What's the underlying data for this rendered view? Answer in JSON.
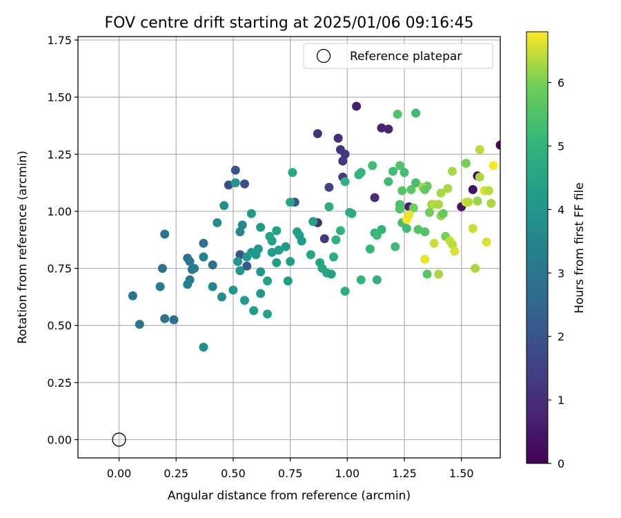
{
  "chart_data": {
    "type": "scatter",
    "title": "FOV centre drift starting at 2025/01/06 09:16:45",
    "xlabel": "Angular distance from reference (arcmin)",
    "ylabel": "Rotation from reference (arcmin)",
    "xlim": [
      -0.18,
      1.67
    ],
    "ylim": [
      -0.08,
      1.765
    ],
    "xticks": [
      0.0,
      0.25,
      0.5,
      0.75,
      1.0,
      1.25,
      1.5
    ],
    "xtick_labels": [
      "0.00",
      "0.25",
      "0.50",
      "0.75",
      "1.00",
      "1.25",
      "1.50"
    ],
    "yticks": [
      0.0,
      0.25,
      0.5,
      0.75,
      1.0,
      1.25,
      1.5,
      1.75
    ],
    "ytick_labels": [
      "0.00",
      "0.25",
      "0.50",
      "0.75",
      "1.00",
      "1.25",
      "1.50",
      "1.75"
    ],
    "grid": true,
    "legend": {
      "placement": "top-right",
      "entries": [
        "Reference platepar"
      ]
    },
    "reference_point": {
      "x": 0.0,
      "y": 0.0,
      "marker": "open-circle",
      "label": "Reference platepar"
    },
    "colorbar": {
      "label": "Hours from first FF file",
      "colormap": "viridis",
      "range": [
        0,
        6.8
      ],
      "ticks": [
        0,
        1,
        2,
        3,
        4,
        5,
        6
      ],
      "tick_labels": [
        "0",
        "1",
        "2",
        "3",
        "4",
        "5",
        "6"
      ]
    },
    "points": [
      {
        "x": 1.67,
        "y": 1.29,
        "h": 0.1
      },
      {
        "x": 1.57,
        "y": 1.155,
        "h": 0.2
      },
      {
        "x": 1.55,
        "y": 1.095,
        "h": 0.3
      },
      {
        "x": 1.5,
        "y": 1.02,
        "h": 0.4
      },
      {
        "x": 1.04,
        "y": 1.46,
        "h": 0.6
      },
      {
        "x": 1.15,
        "y": 1.365,
        "h": 0.7
      },
      {
        "x": 1.18,
        "y": 1.36,
        "h": 0.8
      },
      {
        "x": 1.27,
        "y": 1.02,
        "h": 0.6
      },
      {
        "x": 0.96,
        "y": 1.32,
        "h": 1.0
      },
      {
        "x": 0.87,
        "y": 1.34,
        "h": 1.1
      },
      {
        "x": 0.97,
        "y": 1.27,
        "h": 1.2
      },
      {
        "x": 0.99,
        "y": 1.25,
        "h": 1.2
      },
      {
        "x": 0.98,
        "y": 1.22,
        "h": 1.3
      },
      {
        "x": 0.98,
        "y": 1.15,
        "h": 1.4
      },
      {
        "x": 0.92,
        "y": 1.105,
        "h": 1.5
      },
      {
        "x": 1.12,
        "y": 1.06,
        "h": 1.0
      },
      {
        "x": 0.87,
        "y": 0.95,
        "h": 1.0
      },
      {
        "x": 0.9,
        "y": 0.88,
        "h": 1.3
      },
      {
        "x": 0.51,
        "y": 1.18,
        "h": 2.0
      },
      {
        "x": 0.48,
        "y": 1.115,
        "h": 1.8
      },
      {
        "x": 0.55,
        "y": 1.12,
        "h": 1.9
      },
      {
        "x": 0.77,
        "y": 1.04,
        "h": 2.0
      },
      {
        "x": 0.53,
        "y": 0.81,
        "h": 2.0
      },
      {
        "x": 0.56,
        "y": 0.76,
        "h": 2.2
      },
      {
        "x": 0.37,
        "y": 0.86,
        "h": 2.8
      },
      {
        "x": 0.2,
        "y": 0.9,
        "h": 3.0
      },
      {
        "x": 0.19,
        "y": 0.75,
        "h": 2.9
      },
      {
        "x": 0.41,
        "y": 0.765,
        "h": 2.8
      },
      {
        "x": 0.3,
        "y": 0.795,
        "h": 3.0
      },
      {
        "x": 0.31,
        "y": 0.78,
        "h": 3.1
      },
      {
        "x": 0.32,
        "y": 0.745,
        "h": 3.1
      },
      {
        "x": 0.33,
        "y": 0.75,
        "h": 3.2
      },
      {
        "x": 0.31,
        "y": 0.7,
        "h": 3.2
      },
      {
        "x": 0.3,
        "y": 0.68,
        "h": 3.3
      },
      {
        "x": 0.06,
        "y": 0.63,
        "h": 2.9
      },
      {
        "x": 0.2,
        "y": 0.53,
        "h": 2.9
      },
      {
        "x": 0.24,
        "y": 0.525,
        "h": 2.8
      },
      {
        "x": 0.09,
        "y": 0.505,
        "h": 3.0
      },
      {
        "x": 0.18,
        "y": 0.67,
        "h": 3.2
      },
      {
        "x": 0.37,
        "y": 0.8,
        "h": 3.4
      },
      {
        "x": 0.41,
        "y": 0.67,
        "h": 3.6
      },
      {
        "x": 0.45,
        "y": 0.625,
        "h": 3.7
      },
      {
        "x": 0.43,
        "y": 0.95,
        "h": 3.7
      },
      {
        "x": 0.46,
        "y": 1.025,
        "h": 3.8
      },
      {
        "x": 0.53,
        "y": 0.91,
        "h": 3.6
      },
      {
        "x": 0.54,
        "y": 0.94,
        "h": 3.6
      },
      {
        "x": 0.37,
        "y": 0.405,
        "h": 3.8
      },
      {
        "x": 0.51,
        "y": 1.125,
        "h": 4.0
      },
      {
        "x": 0.52,
        "y": 0.78,
        "h": 4.0
      },
      {
        "x": 0.53,
        "y": 0.74,
        "h": 4.0
      },
      {
        "x": 0.56,
        "y": 0.8,
        "h": 4.0
      },
      {
        "x": 0.58,
        "y": 0.82,
        "h": 4.1
      },
      {
        "x": 0.58,
        "y": 0.99,
        "h": 4.2
      },
      {
        "x": 0.6,
        "y": 0.81,
        "h": 4.2
      },
      {
        "x": 0.61,
        "y": 0.835,
        "h": 4.1
      },
      {
        "x": 0.62,
        "y": 0.735,
        "h": 4.0
      },
      {
        "x": 0.62,
        "y": 0.93,
        "h": 4.2
      },
      {
        "x": 0.55,
        "y": 0.61,
        "h": 4.2
      },
      {
        "x": 0.5,
        "y": 0.655,
        "h": 4.1
      },
      {
        "x": 0.59,
        "y": 0.565,
        "h": 4.3
      },
      {
        "x": 0.62,
        "y": 0.64,
        "h": 4.0
      },
      {
        "x": 0.65,
        "y": 0.695,
        "h": 4.4
      },
      {
        "x": 0.65,
        "y": 0.55,
        "h": 4.4
      },
      {
        "x": 0.66,
        "y": 0.89,
        "h": 4.4
      },
      {
        "x": 0.67,
        "y": 0.87,
        "h": 4.4
      },
      {
        "x": 0.67,
        "y": 0.82,
        "h": 4.3
      },
      {
        "x": 0.69,
        "y": 0.915,
        "h": 4.4
      },
      {
        "x": 0.7,
        "y": 0.83,
        "h": 4.3
      },
      {
        "x": 0.69,
        "y": 0.775,
        "h": 4.3
      },
      {
        "x": 0.73,
        "y": 0.845,
        "h": 4.2
      },
      {
        "x": 0.74,
        "y": 0.695,
        "h": 4.3
      },
      {
        "x": 0.75,
        "y": 0.78,
        "h": 4.3
      },
      {
        "x": 0.75,
        "y": 1.04,
        "h": 4.5
      },
      {
        "x": 0.76,
        "y": 1.17,
        "h": 4.6
      },
      {
        "x": 0.78,
        "y": 0.91,
        "h": 4.4
      },
      {
        "x": 0.79,
        "y": 0.895,
        "h": 4.3
      },
      {
        "x": 0.8,
        "y": 0.87,
        "h": 4.2
      },
      {
        "x": 0.84,
        "y": 0.81,
        "h": 4.5
      },
      {
        "x": 0.85,
        "y": 0.955,
        "h": 4.4
      },
      {
        "x": 0.88,
        "y": 0.775,
        "h": 4.5
      },
      {
        "x": 0.89,
        "y": 0.75,
        "h": 4.6
      },
      {
        "x": 0.91,
        "y": 0.73,
        "h": 4.6
      },
      {
        "x": 0.93,
        "y": 0.725,
        "h": 4.4
      },
      {
        "x": 0.92,
        "y": 1.02,
        "h": 4.7
      },
      {
        "x": 0.94,
        "y": 0.8,
        "h": 4.8
      },
      {
        "x": 0.95,
        "y": 0.875,
        "h": 4.9
      },
      {
        "x": 0.97,
        "y": 0.915,
        "h": 4.9
      },
      {
        "x": 0.99,
        "y": 0.65,
        "h": 4.8
      },
      {
        "x": 0.99,
        "y": 1.13,
        "h": 4.9
      },
      {
        "x": 1.01,
        "y": 0.995,
        "h": 4.6
      },
      {
        "x": 1.02,
        "y": 0.99,
        "h": 4.7
      },
      {
        "x": 1.05,
        "y": 1.16,
        "h": 4.9
      },
      {
        "x": 1.06,
        "y": 1.17,
        "h": 5.0
      },
      {
        "x": 1.06,
        "y": 0.7,
        "h": 5.0
      },
      {
        "x": 1.1,
        "y": 0.835,
        "h": 5.1
      },
      {
        "x": 1.11,
        "y": 1.2,
        "h": 5.3
      },
      {
        "x": 1.12,
        "y": 0.905,
        "h": 5.0
      },
      {
        "x": 1.13,
        "y": 0.895,
        "h": 5.2
      },
      {
        "x": 1.13,
        "y": 0.7,
        "h": 4.9
      },
      {
        "x": 1.15,
        "y": 0.92,
        "h": 5.0
      },
      {
        "x": 1.18,
        "y": 1.13,
        "h": 5.3
      },
      {
        "x": 1.2,
        "y": 1.175,
        "h": 5.3
      },
      {
        "x": 1.21,
        "y": 0.845,
        "h": 5.2
      },
      {
        "x": 1.22,
        "y": 1.425,
        "h": 5.5
      },
      {
        "x": 1.3,
        "y": 1.43,
        "h": 5.3
      },
      {
        "x": 1.23,
        "y": 1.2,
        "h": 5.5
      },
      {
        "x": 1.23,
        "y": 1.03,
        "h": 5.4
      },
      {
        "x": 1.23,
        "y": 1.01,
        "h": 5.5
      },
      {
        "x": 1.24,
        "y": 1.09,
        "h": 5.6
      },
      {
        "x": 1.25,
        "y": 1.17,
        "h": 5.3
      },
      {
        "x": 1.24,
        "y": 0.95,
        "h": 5.4
      },
      {
        "x": 1.26,
        "y": 0.925,
        "h": 5.3
      },
      {
        "x": 1.28,
        "y": 1.095,
        "h": 5.6
      },
      {
        "x": 1.29,
        "y": 1.015,
        "h": 5.9
      },
      {
        "x": 1.3,
        "y": 1.125,
        "h": 5.4
      },
      {
        "x": 1.31,
        "y": 0.92,
        "h": 5.6
      },
      {
        "x": 1.34,
        "y": 0.91,
        "h": 5.5
      },
      {
        "x": 1.35,
        "y": 0.725,
        "h": 5.6
      },
      {
        "x": 1.35,
        "y": 1.11,
        "h": 5.8
      },
      {
        "x": 1.33,
        "y": 1.105,
        "h": 6.3
      },
      {
        "x": 1.34,
        "y": 1.095,
        "h": 5.8
      },
      {
        "x": 1.36,
        "y": 0.995,
        "h": 5.9
      },
      {
        "x": 1.37,
        "y": 1.03,
        "h": 6.2
      },
      {
        "x": 1.38,
        "y": 1.03,
        "h": 6.4
      },
      {
        "x": 1.38,
        "y": 0.86,
        "h": 6.5
      },
      {
        "x": 1.4,
        "y": 0.725,
        "h": 6.3
      },
      {
        "x": 1.4,
        "y": 1.03,
        "h": 6.3
      },
      {
        "x": 1.41,
        "y": 0.98,
        "h": 6.2
      },
      {
        "x": 1.41,
        "y": 1.08,
        "h": 6.3
      },
      {
        "x": 1.42,
        "y": 0.99,
        "h": 5.8
      },
      {
        "x": 1.43,
        "y": 0.89,
        "h": 6.0
      },
      {
        "x": 1.44,
        "y": 1.1,
        "h": 6.3
      },
      {
        "x": 1.45,
        "y": 0.87,
        "h": 6.5
      },
      {
        "x": 1.46,
        "y": 0.855,
        "h": 6.4
      },
      {
        "x": 1.46,
        "y": 1.175,
        "h": 6.3
      },
      {
        "x": 1.47,
        "y": 0.825,
        "h": 6.6
      },
      {
        "x": 1.52,
        "y": 1.21,
        "h": 6.0
      },
      {
        "x": 1.52,
        "y": 1.04,
        "h": 6.6
      },
      {
        "x": 1.53,
        "y": 1.04,
        "h": 6.4
      },
      {
        "x": 1.55,
        "y": 0.925,
        "h": 6.5
      },
      {
        "x": 1.56,
        "y": 0.75,
        "h": 6.3
      },
      {
        "x": 1.57,
        "y": 1.045,
        "h": 6.2
      },
      {
        "x": 1.58,
        "y": 1.27,
        "h": 6.4
      },
      {
        "x": 1.58,
        "y": 1.15,
        "h": 6.3
      },
      {
        "x": 1.6,
        "y": 1.09,
        "h": 6.6
      },
      {
        "x": 1.62,
        "y": 1.09,
        "h": 6.4
      },
      {
        "x": 1.61,
        "y": 0.865,
        "h": 6.6
      },
      {
        "x": 1.63,
        "y": 1.035,
        "h": 6.3
      },
      {
        "x": 1.64,
        "y": 1.2,
        "h": 6.8
      },
      {
        "x": 1.26,
        "y": 0.965,
        "h": 6.8
      },
      {
        "x": 1.27,
        "y": 0.985,
        "h": 6.7
      },
      {
        "x": 1.34,
        "y": 0.79,
        "h": 6.7
      }
    ]
  }
}
